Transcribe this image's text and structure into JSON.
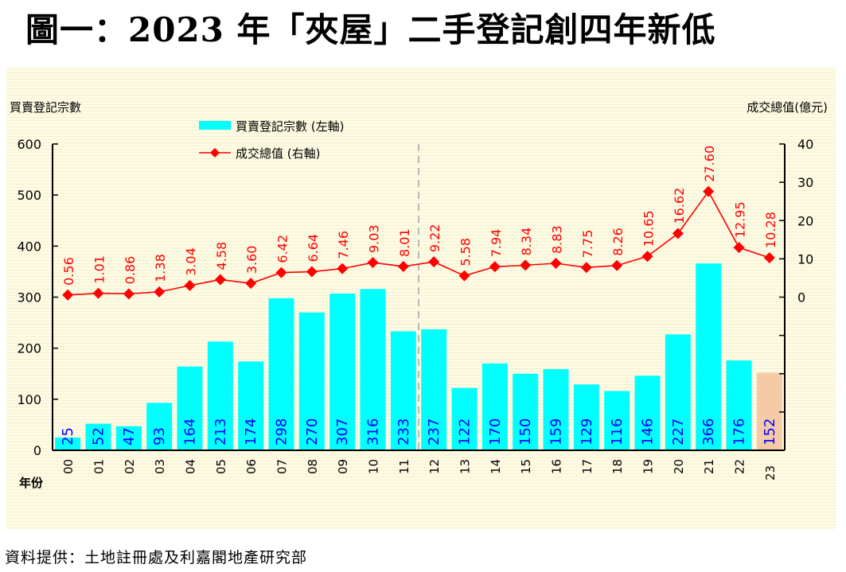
{
  "title": "圖一：2023 年「夾屋」二手登記創四年新低",
  "source": "資料提供：土地註冊處及利嘉閣地產研究部",
  "chart_data": {
    "type": "bar+line",
    "title": "圖一：2023 年「夾屋」二手登記創四年新低",
    "xlabel": "年份",
    "ylabel_left": "買賣登記宗數",
    "ylabel_right": "成交總值(億元)",
    "categories": [
      "00",
      "01",
      "02",
      "03",
      "04",
      "05",
      "06",
      "07",
      "08",
      "09",
      "10",
      "11",
      "12",
      "13",
      "14",
      "15",
      "16",
      "17",
      "18",
      "19",
      "20",
      "21",
      "22",
      "23"
    ],
    "series": [
      {
        "name": "買賣登記宗數 (左軸)",
        "type": "bar",
        "axis": "left",
        "color": "#00ffff",
        "highlight_color": "#f5cba7",
        "highlight_index": 23,
        "label_color": "#0000ff",
        "values": [
          25,
          52,
          47,
          93,
          164,
          213,
          174,
          298,
          270,
          307,
          316,
          233,
          237,
          122,
          170,
          150,
          159,
          129,
          116,
          146,
          227,
          366,
          176,
          152
        ]
      },
      {
        "name": "成交總值 (右軸)",
        "type": "line",
        "axis": "right",
        "color": "#ff0000",
        "marker": "diamond",
        "values": [
          0.56,
          1.01,
          0.86,
          1.38,
          3.04,
          4.58,
          3.6,
          6.42,
          6.64,
          7.46,
          9.03,
          8.01,
          9.22,
          5.58,
          7.94,
          8.34,
          8.83,
          7.75,
          8.26,
          10.65,
          16.62,
          27.6,
          12.95,
          10.28
        ],
        "labels": [
          "0.56",
          "1.01",
          "0.86",
          "1.38",
          "3.04",
          "4.58",
          "3.60",
          "6.42",
          "6.64",
          "7.46",
          "9.03",
          "8.01",
          "9.22",
          "5.58",
          "7.94",
          "8.34",
          "8.83",
          "7.75",
          "8.26",
          "10.65",
          "16.62",
          "27.60",
          "12.95",
          "10.28"
        ]
      }
    ],
    "left_axis": {
      "min": 0,
      "max": 600,
      "ticks": [
        0,
        100,
        200,
        300,
        400,
        500,
        600
      ]
    },
    "right_axis": {
      "min": -40,
      "max": 40,
      "ticks_labeled": [
        0,
        10,
        20,
        30,
        40
      ],
      "ticks_unlabeled": [
        -10,
        -20,
        -30
      ]
    },
    "divider_after_category": "11",
    "legend": {
      "placement": "top-left",
      "entries": [
        "買賣登記宗數 (左軸)",
        "成交總值 (右軸)"
      ]
    },
    "grid": false
  }
}
